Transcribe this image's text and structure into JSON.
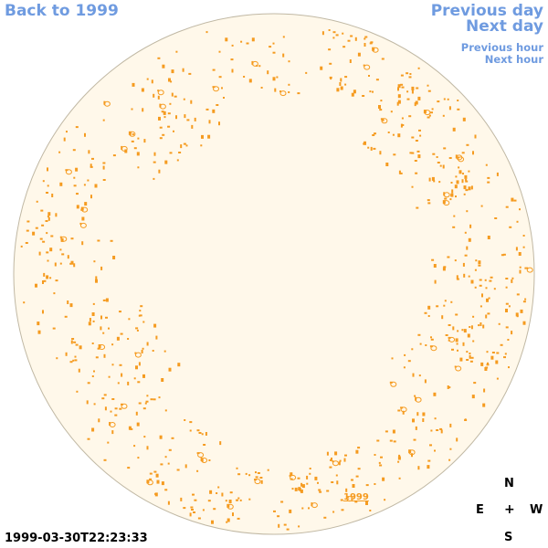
{
  "nav": {
    "back": "Back to 1999",
    "prev_day": "Previous day",
    "next_day": "Next day",
    "prev_hour": "Previous hour",
    "next_hour": "Next hour"
  },
  "map": {
    "label": "1999",
    "timestamp": "1999-03-30T22:23:33"
  },
  "compass": {
    "north": "N",
    "east": "E",
    "center": "+",
    "west": "W",
    "south": "S"
  },
  "colors": {
    "sky_fill": "#fff8ea",
    "sky_border": "#c0b8a4",
    "marker": "#f59b20",
    "link": "#6f9be0"
  }
}
